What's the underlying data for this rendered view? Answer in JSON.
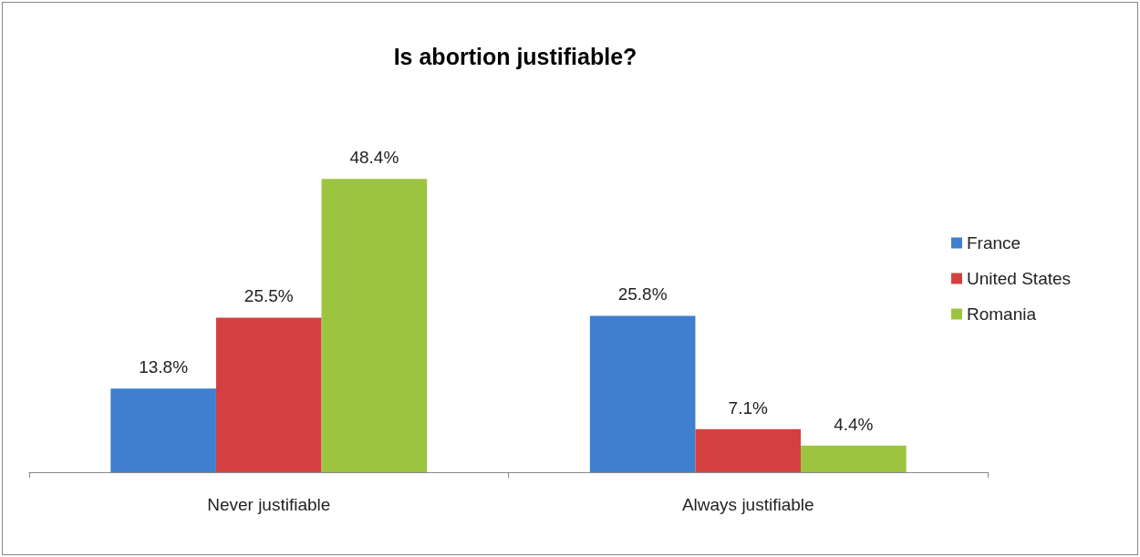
{
  "chart_data": {
    "type": "bar",
    "title": "Is abortion justifiable?",
    "categories": [
      "Never justifiable",
      "Always justifiable"
    ],
    "series": [
      {
        "name": "France",
        "color": "#3f7fcf",
        "values": [
          13.8,
          25.8
        ],
        "value_labels": [
          "13.8%",
          "25.8%"
        ]
      },
      {
        "name": "United States",
        "color": "#d44040",
        "values": [
          25.5,
          7.1
        ],
        "value_labels": [
          "25.5%",
          "7.1%"
        ]
      },
      {
        "name": "Romania",
        "color": "#9cc440",
        "values": [
          48.4,
          4.4
        ],
        "value_labels": [
          "48.4%",
          "4.4%"
        ]
      }
    ],
    "legend": "right"
  }
}
